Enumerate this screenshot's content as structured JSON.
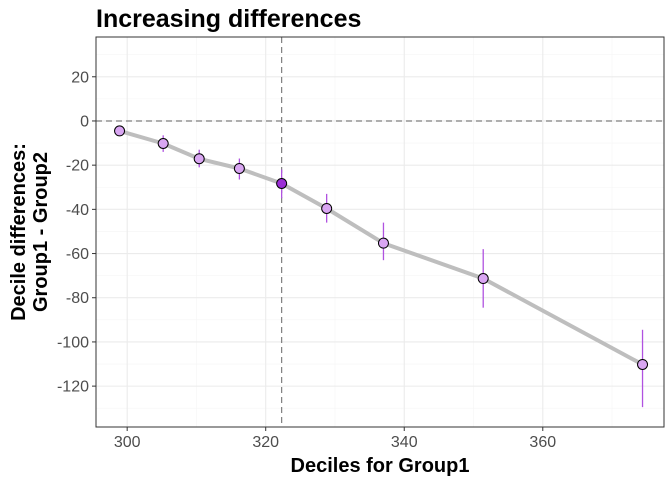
{
  "chart_data": {
    "type": "line",
    "title": "Increasing differences",
    "xlabel": "Deciles for Group1",
    "ylabel_lines": [
      "Decile differences:",
      "Group1 - Group2"
    ],
    "xlim": [
      295.5,
      377.5
    ],
    "ylim": [
      -138.5,
      38
    ],
    "x_ticks": [
      300,
      320,
      340,
      360
    ],
    "y_ticks": [
      20,
      0,
      -20,
      -40,
      -60,
      -80,
      -100,
      -120
    ],
    "x_minor_ticks": [
      310,
      330,
      350,
      370
    ],
    "y_minor_ticks": [
      30,
      10,
      -10,
      -30,
      -50,
      -70,
      -90,
      -110,
      -130
    ],
    "grid": true,
    "reference_lines": {
      "x": 322.3,
      "y": 0
    },
    "series": [
      {
        "points": [
          {
            "x": 298.9,
            "y": -4.5,
            "lo": -5.5,
            "hi": -3.5,
            "median": false
          },
          {
            "x": 305.2,
            "y": -10.2,
            "lo": -14.0,
            "hi": -6.5,
            "median": false
          },
          {
            "x": 310.4,
            "y": -17.1,
            "lo": -21.0,
            "hi": -13.0,
            "median": false
          },
          {
            "x": 316.2,
            "y": -21.5,
            "lo": -26.5,
            "hi": -17.0,
            "median": false
          },
          {
            "x": 322.3,
            "y": -28.3,
            "lo": -35.0,
            "hi": -22.0,
            "median": true
          },
          {
            "x": 328.8,
            "y": -39.6,
            "lo": -46.0,
            "hi": -33.0,
            "median": false
          },
          {
            "x": 337.0,
            "y": -55.3,
            "lo": -63.0,
            "hi": -46.0,
            "median": false
          },
          {
            "x": 351.4,
            "y": -71.3,
            "lo": -84.5,
            "hi": -58.0,
            "median": false
          },
          {
            "x": 374.4,
            "y": -110.2,
            "lo": -129.5,
            "hi": -94.5,
            "median": false
          }
        ]
      }
    ],
    "colors": {
      "line": "#bebebe",
      "point_fill": "#d9a6f2",
      "median_fill": "#9b2ed6",
      "point_stroke": "#000000",
      "errorbar": "#b052e0",
      "reference_line": "#7f7f7f",
      "panel_border": "#333333",
      "grid_major": "#ebebeb",
      "grid_minor": "#f5f5f5"
    }
  }
}
